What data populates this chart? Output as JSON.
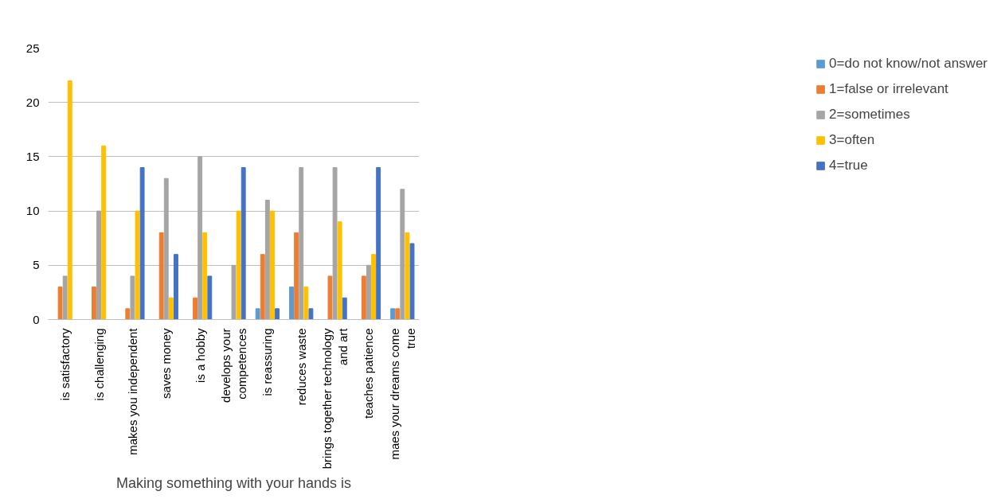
{
  "chart_data": {
    "type": "bar",
    "xlabel": "Making something with your hands is",
    "categories": [
      "is satisfactory",
      "is challenging",
      "makes you independent",
      "saves money",
      "is a hobby",
      "develops your\ncompetences",
      "is reassuring",
      "reduces waste",
      "brings together technology\nand art",
      "teaches patience",
      "maes your dreams come\ntrue"
    ],
    "series": [
      {
        "name": "0=do not know/not answer",
        "color": "#5b9bd5",
        "values": [
          null,
          null,
          null,
          null,
          null,
          null,
          1,
          3,
          null,
          null,
          1
        ]
      },
      {
        "name": "1=false or irrelevant",
        "color": "#ed7d31",
        "values": [
          3,
          3,
          1,
          8,
          2,
          null,
          6,
          8,
          4,
          4,
          1
        ]
      },
      {
        "name": "2=sometimes",
        "color": "#a5a5a5",
        "values": [
          4,
          10,
          4,
          13,
          15,
          5,
          11,
          14,
          14,
          5,
          12
        ]
      },
      {
        "name": "3=often",
        "color": "#ffc000",
        "values": [
          22,
          16,
          10,
          2,
          8,
          10,
          10,
          3,
          9,
          6,
          8
        ]
      },
      {
        "name": "4=true",
        "color": "#4472c4",
        "values": [
          null,
          null,
          14,
          6,
          4,
          14,
          1,
          1,
          2,
          14,
          7
        ]
      }
    ],
    "ylim": [
      0,
      25
    ],
    "yticks": [
      0,
      5,
      10,
      15,
      20,
      25
    ],
    "grid": "y",
    "legend": "right"
  }
}
